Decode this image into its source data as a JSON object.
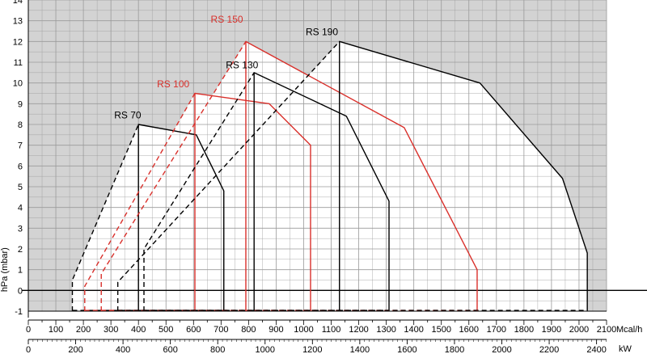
{
  "chart_data": {
    "type": "line",
    "title": "",
    "ylabel": "hPa (mbar)",
    "xlabel_primary_unit": "Mcal/h",
    "xlabel_secondary_unit": "kW",
    "xlim": [
      0,
      2100
    ],
    "ylim": [
      -1,
      14
    ],
    "grid": true,
    "x_ticks": [
      0,
      100,
      200,
      300,
      400,
      500,
      600,
      700,
      800,
      900,
      1000,
      1100,
      1200,
      1300,
      1400,
      1500,
      1600,
      1700,
      1800,
      1900,
      2000,
      2100
    ],
    "x_tick_labels": [
      "0",
      "100",
      "200",
      "300",
      "400",
      "500",
      "600",
      "700",
      "800",
      "900",
      "1000",
      "1100",
      "1200",
      "1300",
      "1400",
      "1500",
      "1600",
      "1700",
      "1800",
      "1900",
      "2000",
      "2100"
    ],
    "y_ticks": [
      -1,
      0,
      1,
      2,
      3,
      4,
      5,
      6,
      7,
      8,
      9,
      10,
      11,
      12,
      13,
      14
    ],
    "y_tick_labels": [
      "-1",
      "0",
      "1",
      "2",
      "3",
      "4",
      "5",
      "6",
      "7",
      "8",
      "9",
      "10",
      "11",
      "12",
      "13",
      "14"
    ],
    "kw_ticks": [
      0,
      200,
      400,
      600,
      800,
      1000,
      1200,
      1400,
      1600,
      1800,
      2000,
      2200,
      2400
    ],
    "kw_tick_labels": [
      "0",
      "200",
      "400",
      "600",
      "800",
      "1000",
      "1200",
      "1400",
      "1600",
      "1800",
      "2000",
      "2200",
      "2400"
    ],
    "colors": {
      "shade": "#d3d3d3",
      "grid": "#9a9a9a",
      "black_series": "#000000",
      "red_series": "#d9302b"
    },
    "series": [
      {
        "name": "RS 70",
        "color": "#000000",
        "label": {
          "x": 410,
          "y": 8.3
        },
        "solid": [
          [
            400,
            -1
          ],
          [
            400,
            8
          ],
          [
            610,
            7.5
          ],
          [
            710,
            4.8
          ],
          [
            710,
            -1
          ]
        ],
        "dashed": [
          [
            160,
            -1
          ],
          [
            160,
            0.5
          ],
          [
            400,
            8
          ]
        ]
      },
      {
        "name": "RS 100",
        "color": "#d9302b",
        "label": {
          "x": 585,
          "y": 9.8
        },
        "solid": [
          [
            605,
            -1
          ],
          [
            605,
            9.5
          ],
          [
            875,
            9
          ],
          [
            1025,
            7
          ],
          [
            1025,
            -1
          ]
        ],
        "dashed": [
          [
            205,
            -1
          ],
          [
            205,
            0.2
          ],
          [
            605,
            9.5
          ]
        ]
      },
      {
        "name": "RS 130",
        "color": "#000000",
        "label": {
          "x": 835,
          "y": 10.7
        },
        "solid": [
          [
            820,
            -1
          ],
          [
            820,
            10.5
          ],
          [
            1155,
            8.4
          ],
          [
            1310,
            4.3
          ],
          [
            1310,
            -1
          ]
        ],
        "dashed": [
          [
            420,
            -1
          ],
          [
            420,
            2
          ],
          [
            820,
            10.5
          ]
        ]
      },
      {
        "name": "RS 150",
        "color": "#d9302b",
        "label": {
          "x": 780,
          "y": 12.9
        },
        "solid": [
          [
            790,
            -1
          ],
          [
            790,
            12
          ],
          [
            1365,
            7.85
          ],
          [
            1630,
            1
          ],
          [
            1630,
            -1
          ]
        ],
        "dashed": [
          [
            265,
            -1
          ],
          [
            265,
            0.8
          ],
          [
            790,
            12
          ]
        ]
      },
      {
        "name": "RS 190",
        "color": "#000000",
        "label": {
          "x": 1125,
          "y": 12.3
        },
        "solid": [
          [
            1130,
            -1
          ],
          [
            1130,
            12
          ],
          [
            1640,
            10
          ],
          [
            1940,
            5.4
          ],
          [
            2030,
            1.8
          ],
          [
            2030,
            -1
          ]
        ],
        "dashed": [
          [
            325,
            -1
          ],
          [
            325,
            0.4
          ],
          [
            1130,
            12
          ]
        ]
      }
    ]
  }
}
